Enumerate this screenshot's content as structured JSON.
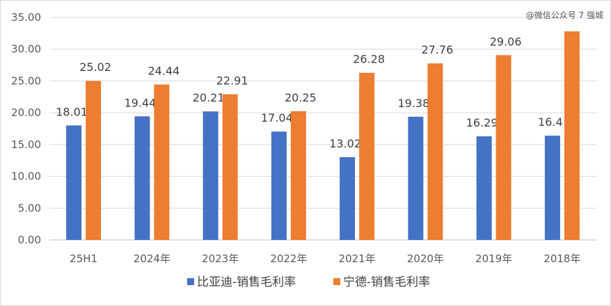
{
  "watermark": "@微信公众号 7 强城",
  "chart_data": {
    "type": "bar",
    "title": "",
    "xlabel": "",
    "ylabel": "",
    "categories": [
      "25H1",
      "2024年",
      "2023年",
      "2022年",
      "2021年",
      "2020年",
      "2019年",
      "2018年"
    ],
    "series": [
      {
        "name": "比亚迪-销售毛利率",
        "color": "#4472c4",
        "values": [
          18.01,
          19.44,
          20.21,
          17.04,
          13.02,
          19.38,
          16.29,
          16.4
        ],
        "labels": [
          "18.01",
          "19.44",
          "20.21",
          "17.04",
          "13.02",
          "19.38",
          "16.29",
          "16.4"
        ]
      },
      {
        "name": "宁德-销售毛利率",
        "color": "#ed7d31",
        "values": [
          25.02,
          24.44,
          22.91,
          20.25,
          26.28,
          27.76,
          29.06,
          32.8
        ],
        "labels": [
          "25.02",
          "24.44",
          "22.91",
          "20.25",
          "26.28",
          "27.76",
          "29.06",
          ""
        ]
      }
    ],
    "ylim": [
      0,
      35
    ],
    "yticks": [
      "0.00",
      "5.00",
      "10.00",
      "15.00",
      "20.00",
      "25.00",
      "30.00",
      "35.00"
    ],
    "grid": true,
    "legend": "bottom"
  }
}
